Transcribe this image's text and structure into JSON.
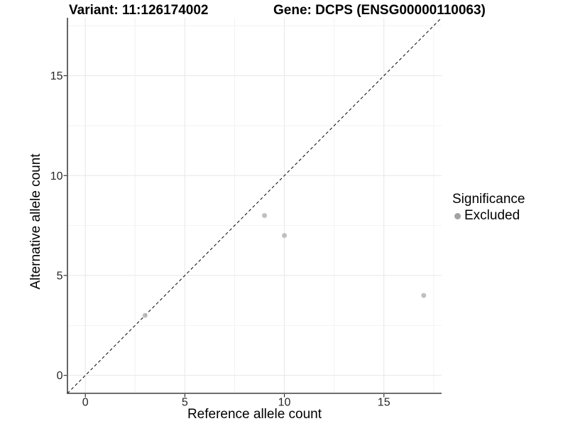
{
  "titles": {
    "variant": "Variant: 11:126174002",
    "gene": "Gene: DCPS (ENSG00000110063)"
  },
  "axes": {
    "x_label": "Reference allele count",
    "y_label": "Alternative allele count"
  },
  "legend": {
    "title": "Significance",
    "items": [
      {
        "label": "Excluded",
        "color": "#a2a2a2"
      }
    ]
  },
  "chart_data": {
    "type": "scatter",
    "title": "Variant: 11:126174002   Gene: DCPS (ENSG00000110063)",
    "xlabel": "Reference allele count",
    "ylabel": "Alternative allele count",
    "series": [
      {
        "name": "Excluded",
        "color": "#b5b5b5",
        "points": [
          {
            "x": 3,
            "y": 3
          },
          {
            "x": 9,
            "y": 8
          },
          {
            "x": 10,
            "y": 7
          },
          {
            "x": 17,
            "y": 4
          }
        ]
      }
    ],
    "reference_line": {
      "style": "dashed",
      "slope": 1,
      "intercept": 0,
      "color": "#1a1a1a"
    },
    "x_ticks": [
      0,
      5,
      10,
      15
    ],
    "y_ticks": [
      0,
      5,
      10,
      15
    ],
    "x_minor_ticks": [
      2.5,
      7.5,
      12.5,
      17.5
    ],
    "y_minor_ticks": [
      2.5,
      7.5,
      12.5,
      17.5
    ],
    "xlim": [
      -0.9,
      17.9
    ],
    "ylim": [
      -0.9,
      17.9
    ],
    "grid": true,
    "legend_position": "right"
  },
  "colors": {
    "point": "#b5b5b5",
    "legend_dot": "#a2a2a2",
    "grid_major": "#e7e7e7",
    "grid_minor": "#f2f2f2",
    "axis_line": "#3f3f3f",
    "tick_mark": "#333333",
    "tick_label": "#262626",
    "reference_line": "#1a1a1a"
  }
}
